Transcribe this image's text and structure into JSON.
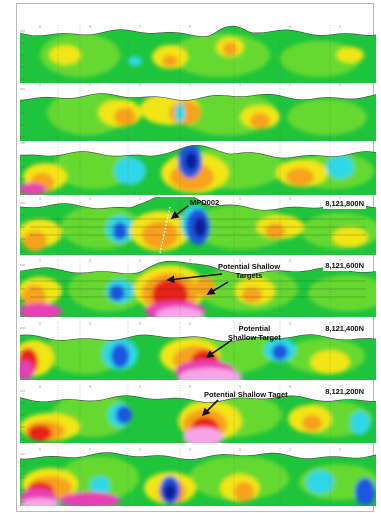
{
  "panels": [
    {
      "northing": ""
    },
    {
      "northing": ""
    },
    {
      "northing": ""
    },
    {
      "northing": "8,121,800N"
    },
    {
      "northing": "8,121,600N"
    },
    {
      "northing": "8,121,400N"
    },
    {
      "northing": "8,121,200N"
    },
    {
      "northing": ""
    }
  ],
  "annotations": {
    "drillhole": "MPD002",
    "target_600": [
      "Potential Shallow",
      "Targets"
    ],
    "target_400": [
      "Potential",
      "Shallow Target"
    ],
    "target_200": "Potential Shallow Taget"
  },
  "colors": {
    "background": "#1ec43c",
    "green_light": "#7ee02c",
    "yellow": "#f2e518",
    "orange": "#f7a21b",
    "red": "#ea2218",
    "magenta": "#e83fb4",
    "pink": "#f5a5e8",
    "cyan": "#2fd8e6",
    "blue": "#1f56e0",
    "navy": "#0a1f9a",
    "grid": "#555555"
  }
}
